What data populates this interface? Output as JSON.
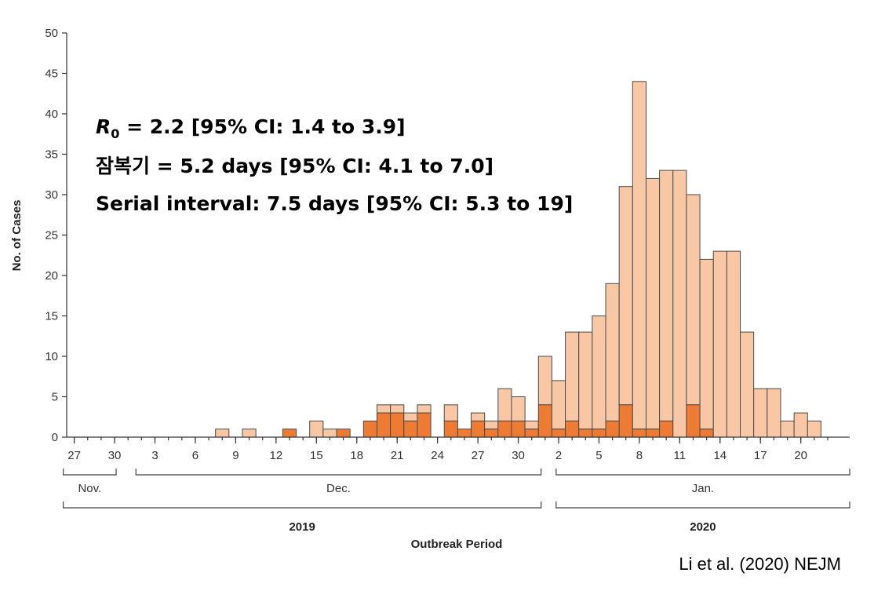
{
  "chart_data": {
    "type": "bar",
    "stacked": true,
    "ylabel": "No. of Cases",
    "xlabel": "Outbreak Period",
    "ylim": [
      0,
      50
    ],
    "y_ticks": [
      0,
      5,
      10,
      15,
      20,
      25,
      30,
      35,
      40,
      45,
      50
    ],
    "x_tick_labels": [
      "27",
      "30",
      "3",
      "6",
      "9",
      "12",
      "15",
      "18",
      "21",
      "24",
      "27",
      "30",
      "2",
      "5",
      "8",
      "11",
      "14",
      "17",
      "20"
    ],
    "months": [
      "Nov.",
      "Dec.",
      "Jan."
    ],
    "years": [
      "2019",
      "2020"
    ],
    "series_colors": [
      "#ed7b34",
      "#f8c7a6"
    ],
    "bars": [
      {
        "date": "2019-12-08",
        "dark": 0,
        "light": 1
      },
      {
        "date": "2019-12-10",
        "dark": 0,
        "light": 1
      },
      {
        "date": "2019-12-13",
        "dark": 1,
        "light": 0
      },
      {
        "date": "2019-12-15",
        "dark": 0,
        "light": 2
      },
      {
        "date": "2019-12-16",
        "dark": 0,
        "light": 1
      },
      {
        "date": "2019-12-17",
        "dark": 1,
        "light": 0
      },
      {
        "date": "2019-12-19",
        "dark": 2,
        "light": 0
      },
      {
        "date": "2019-12-20",
        "dark": 3,
        "light": 1
      },
      {
        "date": "2019-12-21",
        "dark": 3,
        "light": 1
      },
      {
        "date": "2019-12-22",
        "dark": 2,
        "light": 1
      },
      {
        "date": "2019-12-23",
        "dark": 3,
        "light": 1
      },
      {
        "date": "2019-12-25",
        "dark": 2,
        "light": 2
      },
      {
        "date": "2019-12-26",
        "dark": 1,
        "light": 0
      },
      {
        "date": "2019-12-27",
        "dark": 2,
        "light": 1
      },
      {
        "date": "2019-12-28",
        "dark": 1,
        "light": 1
      },
      {
        "date": "2019-12-29",
        "dark": 2,
        "light": 4
      },
      {
        "date": "2019-12-30",
        "dark": 2,
        "light": 3
      },
      {
        "date": "2019-12-31",
        "dark": 1,
        "light": 1
      },
      {
        "date": "2020-01-01",
        "dark": 4,
        "light": 6
      },
      {
        "date": "2020-01-02",
        "dark": 1,
        "light": 6
      },
      {
        "date": "2020-01-03",
        "dark": 2,
        "light": 11
      },
      {
        "date": "2020-01-04",
        "dark": 1,
        "light": 12
      },
      {
        "date": "2020-01-05",
        "dark": 1,
        "light": 14
      },
      {
        "date": "2020-01-06",
        "dark": 2,
        "light": 17
      },
      {
        "date": "2020-01-07",
        "dark": 4,
        "light": 27
      },
      {
        "date": "2020-01-08",
        "dark": 1,
        "light": 43
      },
      {
        "date": "2020-01-09",
        "dark": 1,
        "light": 31
      },
      {
        "date": "2020-01-10",
        "dark": 2,
        "light": 31
      },
      {
        "date": "2020-01-11",
        "dark": 0,
        "light": 33
      },
      {
        "date": "2020-01-12",
        "dark": 4,
        "light": 26
      },
      {
        "date": "2020-01-13",
        "dark": 1,
        "light": 21
      },
      {
        "date": "2020-01-14",
        "dark": 0,
        "light": 23
      },
      {
        "date": "2020-01-15",
        "dark": 0,
        "light": 23
      },
      {
        "date": "2020-01-16",
        "dark": 0,
        "light": 13
      },
      {
        "date": "2020-01-17",
        "dark": 0,
        "light": 6
      },
      {
        "date": "2020-01-18",
        "dark": 0,
        "light": 6
      },
      {
        "date": "2020-01-19",
        "dark": 0,
        "light": 2
      },
      {
        "date": "2020-01-20",
        "dark": 0,
        "light": 3
      },
      {
        "date": "2020-01-21",
        "dark": 0,
        "light": 2
      }
    ],
    "annotations": {
      "r0_symbol": "R",
      "r0_subscript": "0",
      "r0_rest": " = 2.2 [95% CI: 1.4 to 3.9]",
      "incubation": "잠복기 = 5.2 days [95% CI: 4.1 to 7.0]",
      "serial": "Serial interval: 7.5 days [95% CI: 5.3 to 19]"
    }
  },
  "credit": "Li et al. (2020) NEJM"
}
